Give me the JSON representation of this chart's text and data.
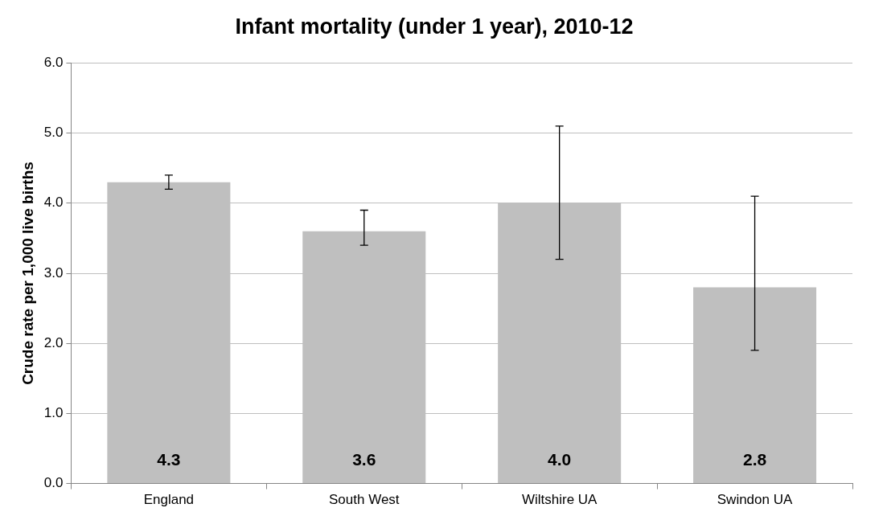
{
  "chart_data": {
    "type": "bar",
    "title": "Infant mortality (under 1 year), 2010-12",
    "ylabel": "Crude rate per 1,000 live births",
    "categories": [
      "England",
      "South West",
      "Wiltshire UA",
      "Swindon UA"
    ],
    "values": [
      4.3,
      3.6,
      4.0,
      2.8
    ],
    "color": "#bfbfbf",
    "errors": [
      [
        4.2,
        4.4
      ],
      [
        3.4,
        3.9
      ],
      [
        3.2,
        5.1
      ],
      [
        1.9,
        4.1
      ]
    ],
    "value_labels": [
      "4.3",
      "3.6",
      "4.0",
      "2.8"
    ],
    "ylim": [
      0,
      6
    ],
    "yticks": [
      {
        "value": 0,
        "label": "0.0"
      },
      {
        "value": 1,
        "label": "1.0"
      },
      {
        "value": 2,
        "label": "2.0"
      },
      {
        "value": 3,
        "label": "3.0"
      },
      {
        "value": 4,
        "label": "4.0"
      },
      {
        "value": 5,
        "label": "5.0"
      },
      {
        "value": 6,
        "label": "6.0"
      }
    ],
    "grid": "y",
    "legend": false
  }
}
